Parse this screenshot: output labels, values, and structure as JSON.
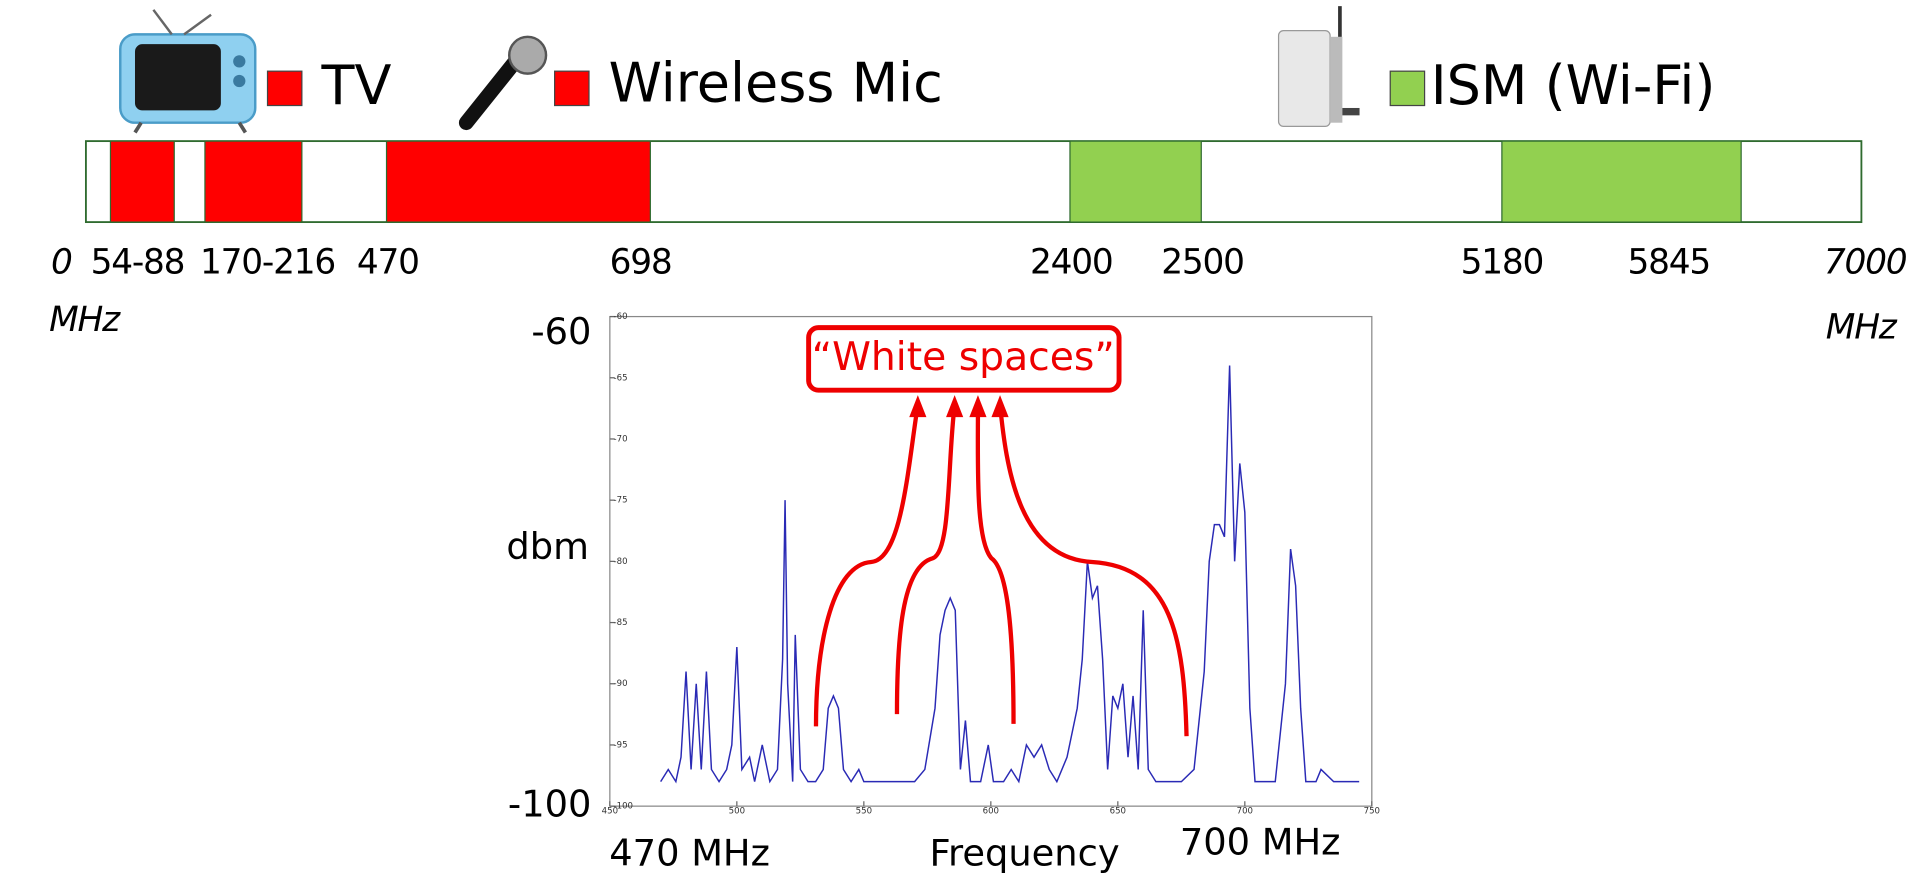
{
  "legend": [
    {
      "label": "TV",
      "color": "#ff0000"
    },
    {
      "label": "Wireless Mic",
      "color": "#ff0000"
    },
    {
      "label": "ISM (Wi-Fi)",
      "color": "#92d050"
    }
  ],
  "band_labels": [
    "0",
    "54-88",
    "170-216",
    "470",
    "698",
    "2400",
    "2500",
    "5180",
    "5845",
    "7000"
  ],
  "band_unit": "MHz",
  "chart_data": {
    "type": "line",
    "annotation": "“White spaces”",
    "y_axis_label": "dbm",
    "x_axis_label": "Frequency",
    "y_end_labels": [
      "-60",
      "-100"
    ],
    "x_end_labels": [
      "470 MHz",
      "700 MHz"
    ],
    "xlim": [
      450,
      750
    ],
    "xticks": [
      450,
      500,
      550,
      600,
      650,
      700,
      750
    ],
    "ylim": [
      -100,
      -60
    ],
    "yticks": [
      -100,
      -95,
      -90,
      -85,
      -80,
      -75,
      -70,
      -65,
      -60
    ],
    "x": [
      470,
      473,
      476,
      478,
      480,
      482,
      484,
      486,
      488,
      490,
      493,
      496,
      498,
      500,
      502,
      505,
      507,
      510,
      513,
      516,
      518,
      519,
      520,
      522,
      523,
      525,
      528,
      531,
      534,
      536,
      538,
      540,
      542,
      545,
      548,
      550,
      555,
      560,
      565,
      570,
      574,
      578,
      580,
      582,
      584,
      586,
      588,
      590,
      592,
      596,
      599,
      601,
      605,
      608,
      611,
      614,
      617,
      620,
      623,
      626,
      630,
      634,
      636,
      638,
      640,
      642,
      644,
      646,
      648,
      650,
      652,
      654,
      656,
      658,
      660,
      662,
      665,
      670,
      675,
      680,
      684,
      686,
      688,
      690,
      692,
      694,
      696,
      698,
      700,
      702,
      704,
      708,
      712,
      716,
      718,
      720,
      722,
      724,
      728,
      730,
      735,
      740,
      745
    ],
    "series": [
      {
        "color": "#2a2ab5",
        "values": [
          -98,
          -97,
          -98,
          -96,
          -89,
          -97,
          -90,
          -97,
          -89,
          -97,
          -98,
          -97,
          -95,
          -87,
          -97,
          -96,
          -98,
          -95,
          -98,
          -97,
          -88,
          -75,
          -90,
          -98,
          -86,
          -97,
          -98,
          -98,
          -97,
          -92,
          -91,
          -92,
          -97,
          -98,
          -97,
          -98,
          -98,
          -98,
          -98,
          -98,
          -97,
          -92,
          -86,
          -84,
          -83,
          -84,
          -97,
          -93,
          -98,
          -98,
          -95,
          -98,
          -98,
          -97,
          -98,
          -95,
          -96,
          -95,
          -97,
          -98,
          -96,
          -92,
          -88,
          -80,
          -83,
          -82,
          -88,
          -97,
          -91,
          -92,
          -90,
          -96,
          -91,
          -97,
          -84,
          -97,
          -98,
          -98,
          -98,
          -97,
          -89,
          -80,
          -77,
          -77,
          -78,
          -64,
          -80,
          -72,
          -76,
          -92,
          -98,
          -98,
          -98,
          -90,
          -79,
          -82,
          -92,
          -98,
          -98,
          -97,
          -98,
          -98,
          -98
        ]
      }
    ]
  }
}
